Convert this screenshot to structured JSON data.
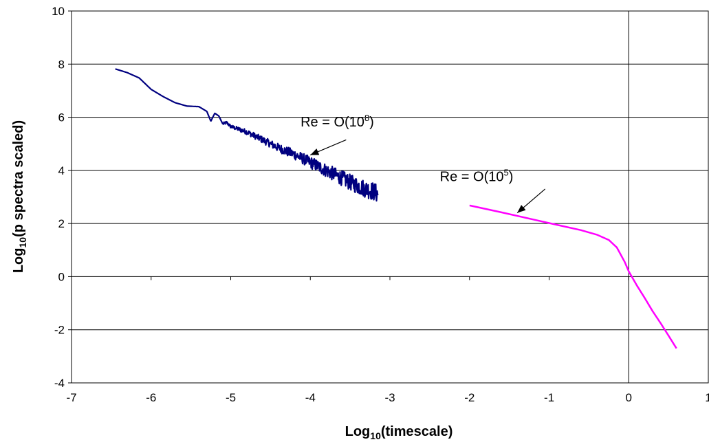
{
  "chart_data": {
    "type": "line",
    "title": "",
    "xlabel": {
      "main": "Log",
      "sub": "10",
      "rest": "(timescale)"
    },
    "ylabel": {
      "main": "Log",
      "sub": "10",
      "rest": "(p spectra scaled)"
    },
    "xlim": [
      -7,
      1
    ],
    "ylim": [
      -4,
      10
    ],
    "xticks": [
      -7,
      -6,
      -5,
      -4,
      -3,
      -2,
      -1,
      0,
      1
    ],
    "yticks": [
      -4,
      -2,
      0,
      2,
      4,
      6,
      8,
      10
    ],
    "xtick_labels": [
      "-7",
      "-6",
      "-5",
      "-4",
      "-3",
      "-2",
      "-1",
      "0",
      "1"
    ],
    "ytick_labels": [
      "-4",
      "-2",
      "0",
      "2",
      "4",
      "6",
      "8",
      "10"
    ],
    "grid": {
      "horizontal": true,
      "vertical": false
    },
    "reference_lines": {
      "x": [
        0
      ]
    },
    "legend": "none",
    "series": [
      {
        "color": "#000080",
        "noisy": true,
        "x": [
          -6.45,
          -6.3,
          -6.15,
          -6.0,
          -5.85,
          -5.7,
          -5.55,
          -5.4,
          -5.3,
          -5.25,
          -5.2,
          -5.15,
          -5.1,
          -5.05,
          -5.0,
          -4.9,
          -4.8,
          -4.7,
          -4.6,
          -4.5,
          -4.4,
          -4.3,
          -4.2,
          -4.1,
          -4.0,
          -3.9,
          -3.8,
          -3.7,
          -3.6,
          -3.5,
          -3.4,
          -3.3,
          -3.2,
          -3.15
        ],
        "y": [
          7.82,
          7.68,
          7.48,
          7.05,
          6.78,
          6.55,
          6.42,
          6.4,
          6.22,
          5.85,
          6.15,
          6.05,
          5.75,
          5.8,
          5.65,
          5.55,
          5.45,
          5.3,
          5.15,
          5.0,
          4.85,
          4.72,
          4.6,
          4.45,
          4.3,
          4.15,
          4.0,
          3.85,
          3.7,
          3.55,
          3.42,
          3.3,
          3.2,
          3.1
        ]
      },
      {
        "color": "#ff00ff",
        "noisy": false,
        "x": [
          -2.0,
          -1.6,
          -1.2,
          -0.9,
          -0.6,
          -0.4,
          -0.25,
          -0.15,
          -0.05,
          0.0,
          0.1,
          0.2,
          0.3,
          0.4,
          0.5,
          0.6
        ],
        "y": [
          2.68,
          2.42,
          2.15,
          1.95,
          1.75,
          1.58,
          1.38,
          1.1,
          0.55,
          0.2,
          -0.32,
          -0.8,
          -1.3,
          -1.75,
          -2.22,
          -2.7
        ]
      }
    ],
    "annotations": [
      {
        "main": "Re = O(10",
        "sup": "8",
        "close": ")",
        "text_at": [
          -3.2,
          5.65
        ],
        "arrow_from": [
          -3.55,
          5.15
        ],
        "arrow_to": [
          -4.0,
          4.58
        ]
      },
      {
        "main": "Re = O(10",
        "sup": "5",
        "close": ")",
        "text_at": [
          -1.45,
          3.6
        ],
        "arrow_from": [
          -1.05,
          3.3
        ],
        "arrow_to": [
          -1.4,
          2.4
        ]
      }
    ]
  }
}
